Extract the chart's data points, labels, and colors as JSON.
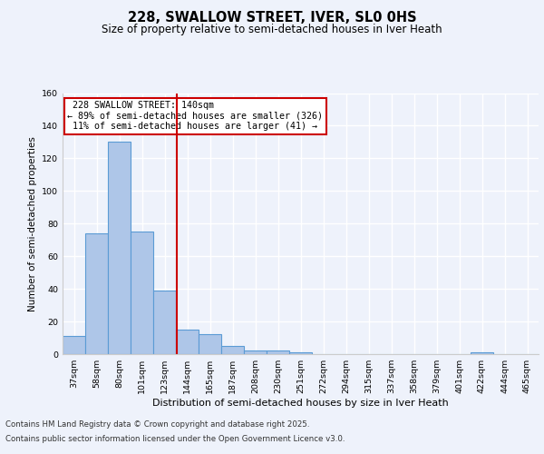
{
  "title": "228, SWALLOW STREET, IVER, SL0 0HS",
  "subtitle": "Size of property relative to semi-detached houses in Iver Heath",
  "xlabel": "Distribution of semi-detached houses by size in Iver Heath",
  "ylabel": "Number of semi-detached properties",
  "categories": [
    "37sqm",
    "58sqm",
    "80sqm",
    "101sqm",
    "123sqm",
    "144sqm",
    "165sqm",
    "187sqm",
    "208sqm",
    "230sqm",
    "251sqm",
    "272sqm",
    "294sqm",
    "315sqm",
    "337sqm",
    "358sqm",
    "379sqm",
    "401sqm",
    "422sqm",
    "444sqm",
    "465sqm"
  ],
  "values": [
    11,
    74,
    130,
    75,
    39,
    15,
    12,
    5,
    2,
    2,
    1,
    0,
    0,
    0,
    0,
    0,
    0,
    0,
    1,
    0,
    0
  ],
  "bar_color": "#aec6e8",
  "bar_edge_color": "#5b9bd5",
  "property_label": "228 SWALLOW STREET: 140sqm",
  "pct_smaller": 89,
  "n_smaller": 326,
  "pct_larger": 11,
  "n_larger": 41,
  "vline_x_index": 4.55,
  "vline_color": "#cc0000",
  "annotation_box_color": "#cc0000",
  "ylim": [
    0,
    160
  ],
  "yticks": [
    0,
    20,
    40,
    60,
    80,
    100,
    120,
    140,
    160
  ],
  "footer1": "Contains HM Land Registry data © Crown copyright and database right 2025.",
  "footer2": "Contains public sector information licensed under the Open Government Licence v3.0.",
  "bg_color": "#eef2fb",
  "plot_bg_color": "#eef2fb"
}
